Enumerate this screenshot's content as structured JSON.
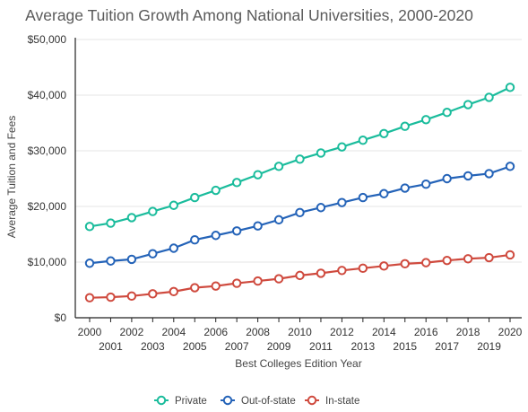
{
  "chart_data": {
    "type": "line",
    "title": "Average Tuition Growth Among National Universities, 2000-2020",
    "xlabel": "Best Colleges Edition Year",
    "ylabel": "Average Tuition and Fees",
    "x": [
      2000,
      2001,
      2002,
      2003,
      2004,
      2005,
      2006,
      2007,
      2008,
      2009,
      2010,
      2011,
      2012,
      2013,
      2014,
      2015,
      2016,
      2017,
      2018,
      2019,
      2020
    ],
    "x_tick_labels": [
      "2000",
      "2001",
      "2002",
      "2003",
      "2004",
      "2005",
      "2006",
      "2007",
      "2008",
      "2009",
      "2010",
      "2011",
      "2012",
      "2013",
      "2014",
      "2015",
      "2016",
      "2017",
      "2018",
      "2019",
      "2020"
    ],
    "ylim": [
      0,
      50000
    ],
    "y_ticks": [
      0,
      10000,
      20000,
      30000,
      40000,
      50000
    ],
    "y_tick_labels": [
      "$0",
      "$10,000",
      "$20,000",
      "$30,000",
      "$40,000",
      "$50,000"
    ],
    "grid": true,
    "legend_position": "bottom-center",
    "series": [
      {
        "name": "Private",
        "color": "#1abc9c",
        "values": [
          16400,
          17000,
          18000,
          19100,
          20200,
          21600,
          22900,
          24300,
          25700,
          27200,
          28500,
          29600,
          30700,
          31900,
          33100,
          34400,
          35600,
          36900,
          38300,
          39600,
          41400
        ]
      },
      {
        "name": "Out-of-state",
        "color": "#2463b8",
        "values": [
          9800,
          10200,
          10500,
          11500,
          12500,
          14000,
          14800,
          15600,
          16500,
          17600,
          18900,
          19800,
          20700,
          21600,
          22300,
          23300,
          24000,
          25000,
          25500,
          25900,
          27200
        ]
      },
      {
        "name": "In-state",
        "color": "#cf4a3e",
        "values": [
          3600,
          3700,
          3900,
          4300,
          4700,
          5400,
          5700,
          6200,
          6600,
          7000,
          7600,
          8000,
          8500,
          8900,
          9300,
          9700,
          9900,
          10300,
          10600,
          10800,
          11300
        ]
      }
    ]
  }
}
